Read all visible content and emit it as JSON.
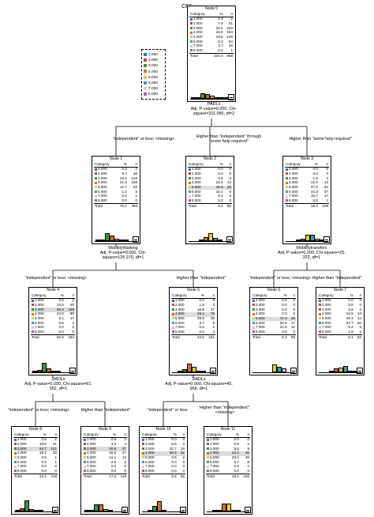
{
  "title": "CFS",
  "palette": {
    "1.000": "#2b6fd6",
    "2.000": "#d93b2a",
    "3.000": "#2f9a3c",
    "4.000": "#e06a1c",
    "5.000": "#f2cf1c",
    "6.000": "#22a7b7",
    "7.000": "#f0b9c8",
    "8.000": "#b54ec4"
  },
  "legend": {
    "items": [
      "1.000",
      "2.000",
      "3.000",
      "4.000",
      "5.000",
      "6.000",
      "7.000",
      "8.000"
    ]
  },
  "table_headers": {
    "category": "Category",
    "pct": "%",
    "n": "n"
  },
  "total_label": "Total",
  "nodes": [
    {
      "id": "n0",
      "title": "Node 0",
      "hl": -1,
      "rows": [
        [
          "1.000",
          "0.3",
          "2"
        ],
        [
          "2.000",
          "7.8",
          "51"
        ],
        [
          "3.000",
          "33.4",
          "220"
        ],
        [
          "4.000",
          "28.0",
          "184"
        ],
        [
          "5.000",
          "19.5",
          "128"
        ],
        [
          "6.000",
          "8.2",
          "54"
        ],
        [
          "7.000",
          "2.7",
          "18"
        ],
        [
          "8.000",
          "0.2",
          "1"
        ]
      ],
      "total": [
        "100.0",
        "658"
      ]
    },
    {
      "id": "n1",
      "title": "Node 1",
      "hl": -1,
      "rows": [
        [
          "1.000",
          "0.4",
          "2"
        ],
        [
          "2.000",
          "9.7",
          "48"
        ],
        [
          "3.000",
          "43.4",
          "215"
        ],
        [
          "4.000",
          "31.9",
          "158"
        ],
        [
          "5.000",
          "12.7",
          "63"
        ],
        [
          "6.000",
          "1.6",
          "8"
        ],
        [
          "7.000",
          "0.2",
          "1"
        ],
        [
          "8.000",
          "0.0",
          "0"
        ]
      ],
      "total": [
        "75.2",
        "495"
      ]
    },
    {
      "id": "n2",
      "title": "Node 2",
      "hl": 4,
      "rows": [
        [
          "1.000",
          "0.0",
          "0"
        ],
        [
          "2.000",
          "0.0",
          "0"
        ],
        [
          "3.000",
          "5.5",
          "3"
        ],
        [
          "4.000",
          "23.6",
          "13"
        ],
        [
          "5.000",
          "45.5",
          "25"
        ],
        [
          "6.000",
          "16.4",
          "9"
        ],
        [
          "7.000",
          "9.1",
          "5"
        ],
        [
          "8.000",
          "0.0",
          "0"
        ]
      ],
      "total": [
        "8.4",
        "55"
      ]
    },
    {
      "id": "n3",
      "title": "Node 3",
      "hl": -1,
      "rows": [
        [
          "1.000",
          "0.0",
          "0"
        ],
        [
          "2.000",
          "0.0",
          "0"
        ],
        [
          "3.000",
          "1.9",
          "2"
        ],
        [
          "4.000",
          "12.0",
          "13"
        ],
        [
          "5.000",
          "37.0",
          "40"
        ],
        [
          "6.000",
          "34.3",
          "37"
        ],
        [
          "7.000",
          "15.7",
          "17"
        ],
        [
          "8.000",
          "0.9",
          "1"
        ]
      ],
      "total": [
        "16.4",
        "108"
      ]
    },
    {
      "id": "n4",
      "title": "Node 4",
      "hl": 2,
      "rows": [
        [
          "1.000",
          "0.6",
          "2"
        ],
        [
          "2.000",
          "13.5",
          "45"
        ],
        [
          "3.000",
          "56.3",
          "188"
        ],
        [
          "4.000",
          "24.0",
          "80"
        ],
        [
          "5.000",
          "5.1",
          "17"
        ],
        [
          "6.000",
          "0.6",
          "2"
        ],
        [
          "7.000",
          "0.0",
          "0"
        ],
        [
          "8.000",
          "0.0",
          "0"
        ]
      ],
      "total": [
        "50.8",
        "334"
      ]
    },
    {
      "id": "n5",
      "title": "Node 5",
      "hl": 3,
      "rows": [
        [
          "1.000",
          "0.0",
          "0"
        ],
        [
          "2.000",
          "1.9",
          "3"
        ],
        [
          "3.000",
          "16.8",
          "27"
        ],
        [
          "4.000",
          "48.4",
          "78"
        ],
        [
          "5.000",
          "29.8",
          "48"
        ],
        [
          "6.000",
          "3.7",
          "6"
        ],
        [
          "7.000",
          "0.6",
          "1"
        ],
        [
          "8.000",
          "0.0",
          "0"
        ]
      ],
      "total": [
        "24.5",
        "161"
      ]
    },
    {
      "id": "n6",
      "title": "Node 6",
      "hl": 4,
      "rows": [
        [
          "1.000",
          "0.0",
          "0"
        ],
        [
          "2.000",
          "0.0",
          "0"
        ],
        [
          "3.000",
          "0.0",
          "0"
        ],
        [
          "4.000",
          "0.0",
          "0"
        ],
        [
          "5.000",
          "47.3",
          "26"
        ],
        [
          "6.000",
          "30.9",
          "17"
        ],
        [
          "7.000",
          "21.8",
          "12"
        ],
        [
          "8.000",
          "0.0",
          "0"
        ]
      ],
      "total": [
        "8.4",
        "55"
      ]
    },
    {
      "id": "n7",
      "title": "Node 7",
      "hl": -1,
      "rows": [
        [
          "1.000",
          "0.0",
          "0"
        ],
        [
          "2.000",
          "0.0",
          "0"
        ],
        [
          "3.000",
          "3.8",
          "2"
        ],
        [
          "4.000",
          "24.5",
          "13"
        ],
        [
          "5.000",
          "26.4",
          "14"
        ],
        [
          "6.000",
          "37.7",
          "20"
        ],
        [
          "7.000",
          "9.4",
          "5"
        ],
        [
          "8.000",
          "1.9",
          "1"
        ]
      ],
      "total": [
        "8.1",
        "53"
      ]
    },
    {
      "id": "n8",
      "title": "Node 8",
      "hl": 2,
      "rows": [
        [
          "1.000",
          "0.5",
          "1"
        ],
        [
          "2.000",
          "18.8",
          "41"
        ],
        [
          "3.000",
          "64.7",
          "141"
        ],
        [
          "4.000",
          "15.1",
          "33"
        ],
        [
          "5.000",
          "0.5",
          "1"
        ],
        [
          "6.000",
          "0.5",
          "1"
        ],
        [
          "7.000",
          "0.0",
          "0"
        ],
        [
          "8.000",
          "0.0",
          "0"
        ]
      ],
      "total": [
        "33.1",
        "218"
      ]
    },
    {
      "id": "n9",
      "title": "Node 9",
      "hl": 2,
      "rows": [
        [
          "1.000",
          "0.9",
          "1"
        ],
        [
          "2.000",
          "3.4",
          "4"
        ],
        [
          "3.000",
          "40.5",
          "47"
        ],
        [
          "4.000",
          "40.5",
          "47"
        ],
        [
          "5.000",
          "12.1",
          "14"
        ],
        [
          "6.000",
          "2.6",
          "3"
        ],
        [
          "7.000",
          "0.0",
          "0"
        ],
        [
          "8.000",
          "0.0",
          "0"
        ]
      ],
      "total": [
        "17.6",
        "116"
      ]
    },
    {
      "id": "n10",
      "title": "Node 10",
      "hl": 3,
      "rows": [
        [
          "1.000",
          "0.0",
          "0"
        ],
        [
          "2.000",
          "5.5",
          "3"
        ],
        [
          "3.000",
          "32.7",
          "18"
        ],
        [
          "4.000",
          "58.2",
          "32"
        ],
        [
          "5.000",
          "3.6",
          "2"
        ],
        [
          "6.000",
          "0.0",
          "0"
        ],
        [
          "7.000",
          "0.0",
          "0"
        ],
        [
          "8.000",
          "0.0",
          "0"
        ]
      ],
      "total": [
        "8.4",
        "55"
      ]
    },
    {
      "id": "n11",
      "title": "Node 11",
      "hl": 3,
      "rows": [
        [
          "1.000",
          "0.0",
          "0"
        ],
        [
          "2.000",
          "0.9",
          "1"
        ],
        [
          "3.000",
          "8.5",
          "9"
        ],
        [
          "4.000",
          "43.4",
          "46"
        ],
        [
          "5.000",
          "43.4",
          "46"
        ],
        [
          "6.000",
          "5.7",
          "6"
        ],
        [
          "7.000",
          "0.9",
          "1"
        ],
        [
          "8.000",
          "0.0",
          "0"
        ]
      ],
      "total": [
        "16.1",
        "106"
      ]
    }
  ],
  "splits": [
    {
      "id": "s0",
      "lines": [
        "PADLs",
        "Adj. P-value=0.000, Chi-",
        "square=311.086, df=2"
      ]
    },
    {
      "id": "s1",
      "lines": [
        "MobilityWalking",
        "Adj. P-value=0.000, Chi-",
        "square=125.270, df=1"
      ]
    },
    {
      "id": "s3",
      "lines": [
        "Mobilitytransfers",
        "Adj. P-value=0.000, Chi-square=25.",
        "322, df=1"
      ]
    },
    {
      "id": "s4",
      "lines": [
        "DADLs",
        "Adj. P-value=0.000, Chi-square=61.",
        "952, df=1"
      ]
    },
    {
      "id": "s5",
      "lines": [
        "DADLs",
        "Adj. P-value=0.000, Chi-square=45.",
        "958, df=1"
      ]
    }
  ],
  "branches": [
    {
      "id": "b1",
      "lines": [
        "\"independent\" or less; <missing>"
      ]
    },
    {
      "id": "b2",
      "lines": [
        "Higher than \"independent\" through",
        "\"some help required\""
      ]
    },
    {
      "id": "b3",
      "lines": [
        "Higher than \"some help required\""
      ]
    },
    {
      "id": "b4",
      "lines": [
        "\"independent\" or less; <missing>"
      ]
    },
    {
      "id": "b5",
      "lines": [
        "Higher than \"independent\""
      ]
    },
    {
      "id": "b6",
      "lines": [
        "\"independent\" or less; <missing>"
      ]
    },
    {
      "id": "b7",
      "lines": [
        "Higher than \"independent\""
      ]
    },
    {
      "id": "b8",
      "lines": [
        "\"independent\" or less; <missing>"
      ]
    },
    {
      "id": "b9",
      "lines": [
        "Higher than \"independent\""
      ]
    },
    {
      "id": "b10",
      "lines": [
        "\"independent\" or less"
      ]
    },
    {
      "id": "b11",
      "lines": [
        "Higher than \"independent\";",
        "<missing>"
      ]
    }
  ]
}
